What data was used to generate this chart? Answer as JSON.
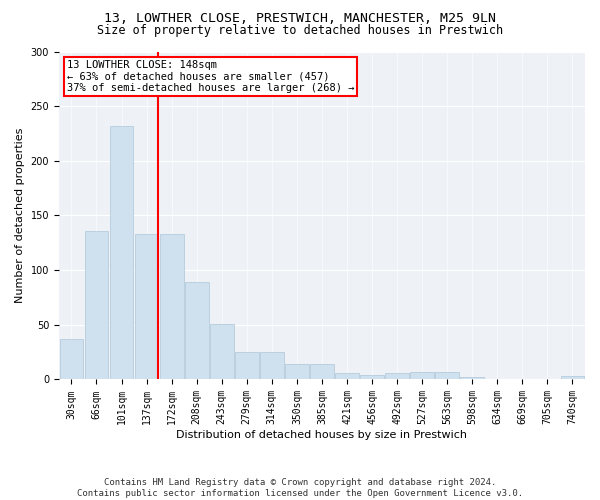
{
  "title_line1": "13, LOWTHER CLOSE, PRESTWICH, MANCHESTER, M25 9LN",
  "title_line2": "Size of property relative to detached houses in Prestwich",
  "xlabel": "Distribution of detached houses by size in Prestwich",
  "ylabel": "Number of detached properties",
  "footnote": "Contains HM Land Registry data © Crown copyright and database right 2024.\nContains public sector information licensed under the Open Government Licence v3.0.",
  "bin_labels": [
    "30sqm",
    "66sqm",
    "101sqm",
    "137sqm",
    "172sqm",
    "208sqm",
    "243sqm",
    "279sqm",
    "314sqm",
    "350sqm",
    "385sqm",
    "421sqm",
    "456sqm",
    "492sqm",
    "527sqm",
    "563sqm",
    "598sqm",
    "634sqm",
    "669sqm",
    "705sqm",
    "740sqm"
  ],
  "bar_values": [
    37,
    136,
    232,
    133,
    133,
    89,
    51,
    25,
    25,
    14,
    14,
    6,
    4,
    6,
    7,
    7,
    2,
    0,
    0,
    0,
    3
  ],
  "bar_color": "#cfe0ef",
  "bar_edge_color": "#aec6d8",
  "vline_color": "red",
  "annotation_text": "13 LOWTHER CLOSE: 148sqm\n← 63% of detached houses are smaller (457)\n37% of semi-detached houses are larger (268) →",
  "annotation_box_color": "white",
  "annotation_box_edge": "red",
  "ylim": [
    0,
    300
  ],
  "yticks": [
    0,
    50,
    100,
    150,
    200,
    250,
    300
  ],
  "title_fontsize": 9.5,
  "subtitle_fontsize": 8.5,
  "axis_label_fontsize": 8,
  "tick_fontsize": 7,
  "annotation_fontsize": 7.5,
  "footnote_fontsize": 6.5,
  "bg_color": "#eef2f7"
}
